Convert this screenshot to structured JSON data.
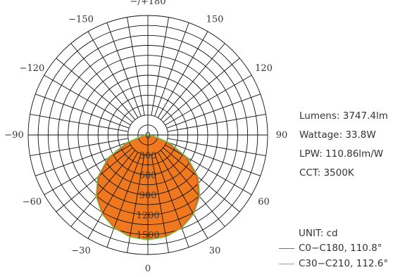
{
  "chart_data": {
    "type": "polar",
    "unit_label": "UNIT: cd",
    "radial_axis": {
      "min": 0,
      "max": 1800,
      "grid_step": 150,
      "tick_labels": [
        "0",
        "300",
        "600",
        "900",
        "1200",
        "1500"
      ]
    },
    "angular_axis": {
      "grid_step_deg": 10,
      "labels": [
        {
          "angle": 0,
          "text": "0"
        },
        {
          "angle": 30,
          "text": "30"
        },
        {
          "angle": 60,
          "text": "60"
        },
        {
          "angle": 90,
          "text": "90"
        },
        {
          "angle": 120,
          "text": "120"
        },
        {
          "angle": 150,
          "text": "150"
        },
        {
          "angle": 180,
          "text": "−/+180"
        },
        {
          "angle": -150,
          "text": "−150"
        },
        {
          "angle": -120,
          "text": "−120"
        },
        {
          "angle": -90,
          "text": "−90"
        },
        {
          "angle": -60,
          "text": "−60"
        },
        {
          "angle": -30,
          "text": "−30"
        }
      ]
    },
    "series": [
      {
        "name": "C0−C180, 110.8°",
        "color": "#e8432b",
        "fill": "#f0781f",
        "points": [
          [
            0,
            1580
          ],
          [
            10,
            1555
          ],
          [
            20,
            1485
          ],
          [
            30,
            1365
          ],
          [
            40,
            1195
          ],
          [
            50,
            960
          ],
          [
            60,
            655
          ],
          [
            70,
            300
          ],
          [
            80,
            60
          ],
          [
            90,
            0
          ]
        ]
      },
      {
        "name": "C30−C210, 112.6°",
        "color": "#78c43e",
        "fill": "#f0781f",
        "points": [
          [
            0,
            1580
          ],
          [
            10,
            1558
          ],
          [
            20,
            1490
          ],
          [
            30,
            1375
          ],
          [
            40,
            1210
          ],
          [
            50,
            985
          ],
          [
            60,
            690
          ],
          [
            70,
            340
          ],
          [
            80,
            80
          ],
          [
            90,
            0
          ]
        ]
      }
    ],
    "grid": true
  },
  "info": {
    "lumens": "Lumens: 3747.4lm",
    "wattage": "Wattage: 33.8W",
    "lpw": "LPW: 110.86lm/W",
    "cct": "CCT: 3500K"
  }
}
